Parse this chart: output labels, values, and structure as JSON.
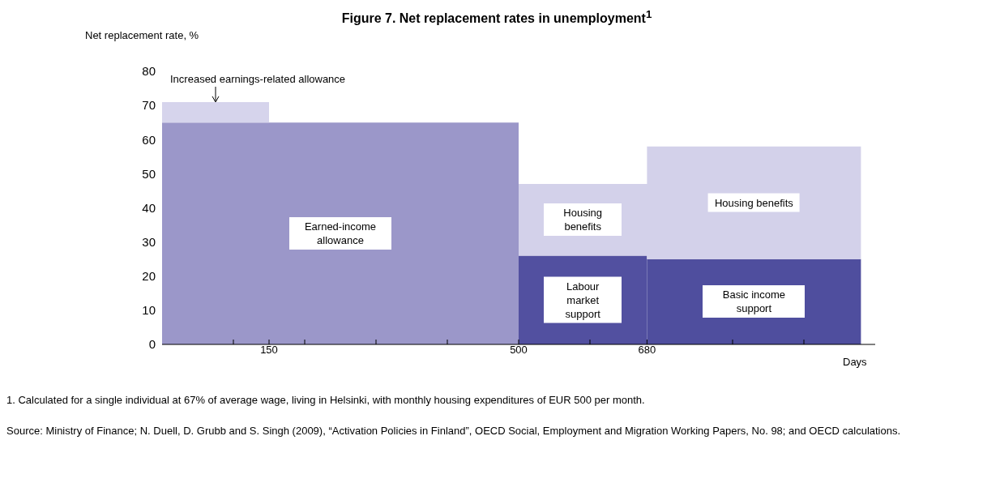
{
  "chart_data": {
    "type": "area",
    "stacked": true,
    "title": "Figure 7.  Net replacement rates in unemployment$^{1}$",
    "ylabel": "Net replacement rate, %",
    "xlabel": "Days",
    "x": [
      0,
      150,
      150,
      500,
      500,
      680,
      680,
      980
    ],
    "series": [
      {
        "name": "Earned-income allowance",
        "color": "#9b97c9",
        "values": [
          65,
          65,
          65,
          65,
          null,
          null,
          null,
          null
        ]
      },
      {
        "name": "Labour market support",
        "color": "#5250a0",
        "values": [
          null,
          null,
          null,
          null,
          26,
          26,
          null,
          null
        ]
      },
      {
        "name": "Basic income support",
        "color": "#4f4e9e",
        "values": [
          null,
          null,
          null,
          null,
          null,
          null,
          25,
          25
        ]
      },
      {
        "name": "Housing benefits",
        "color": "#d3d1ea",
        "values": [
          null,
          null,
          null,
          null,
          21,
          21,
          33,
          33
        ]
      },
      {
        "name": "Increased earnings-related allowance",
        "color": "#d6d4ec",
        "values": [
          6,
          6,
          null,
          null,
          null,
          null,
          null,
          null
        ]
      }
    ],
    "xlim": [
      0,
      1000
    ],
    "xticks": [
      {
        "value": 100,
        "label": null
      },
      150,
      {
        "value": 200,
        "label": null
      },
      {
        "value": 300,
        "label": null
      },
      {
        "value": 400,
        "label": null
      },
      500,
      {
        "value": 600,
        "label": null
      },
      680,
      {
        "value": 800,
        "label": null
      },
      {
        "value": 900,
        "label": null
      }
    ],
    "ylim": [
      0,
      80
    ],
    "yticks": [
      0,
      10,
      20,
      30,
      40,
      50,
      60,
      70,
      80
    ],
    "annotations": [
      "1.  Calculated for a single individual at 67% of average wage, living in Helsinki, with monthly housing expenditures of EUR 500 per month.",
      "Source: Ministry of Finance; N. Duell, D. Grubb and S. Singh (2009), “Activation Policies in Finland”, OECD Social, Employment and Migration Working Papers, No. 98; and OECD calculations."
    ]
  }
}
